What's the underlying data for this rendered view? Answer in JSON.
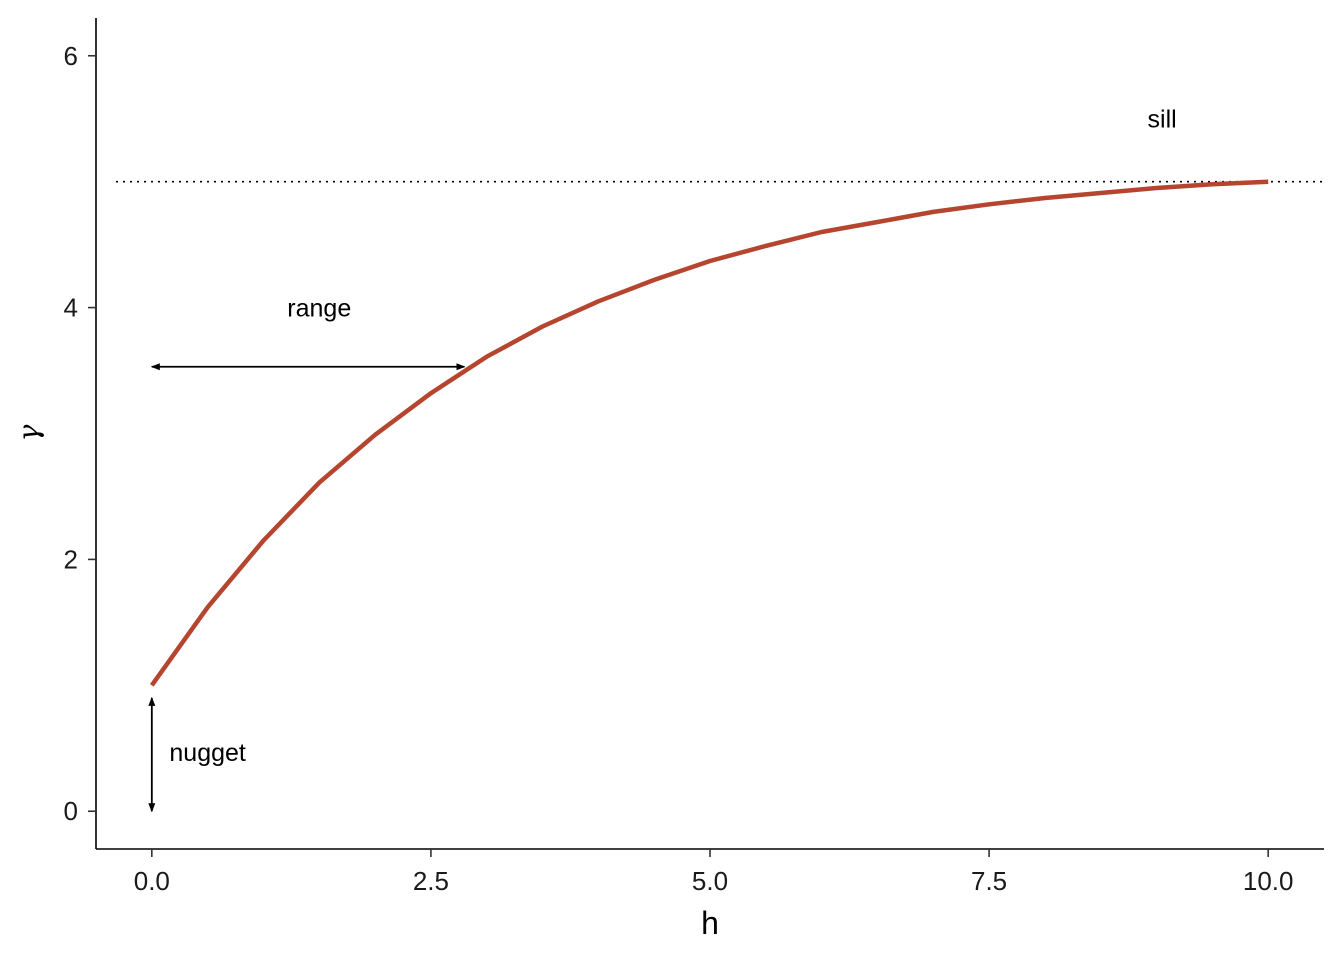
{
  "chart_data": {
    "type": "line",
    "title": "",
    "xlabel": "h",
    "ylabel": "γ",
    "xlim": [
      -0.5,
      10.5
    ],
    "ylim": [
      -0.3,
      6.3
    ],
    "x_ticks": [
      0,
      2.5,
      5,
      7.5,
      10
    ],
    "x_tick_labels": [
      "0.0",
      "2.5",
      "5.0",
      "7.5",
      "10.0"
    ],
    "y_ticks": [
      0,
      2,
      4,
      6
    ],
    "y_tick_labels": [
      "0",
      "2",
      "4",
      "6"
    ],
    "grid": false,
    "series": [
      {
        "x": [
          0,
          0.5,
          1,
          1.5,
          2,
          2.5,
          3,
          3.5,
          4,
          4.5,
          5,
          5.5,
          6,
          6.5,
          7,
          7.5,
          8,
          8.5,
          9,
          9.5,
          10
        ],
        "values": [
          1.0,
          1.62,
          2.15,
          2.61,
          2.99,
          3.32,
          3.61,
          3.85,
          4.05,
          4.22,
          4.37,
          4.49,
          4.6,
          4.68,
          4.76,
          4.82,
          4.87,
          4.91,
          4.95,
          4.98,
          5.0
        ],
        "color": "#B5452E"
      }
    ],
    "reference_lines": [
      {
        "axis": "y",
        "value": 5,
        "style": "dotted",
        "color": "#000000"
      }
    ],
    "annotations": [
      {
        "text": "sill",
        "x": 9.05,
        "y": 5.5
      },
      {
        "text": "range",
        "x": 1.5,
        "y": 4.0
      },
      {
        "text": "nugget",
        "x": 0.5,
        "y": 0.47
      }
    ],
    "arrows": [
      {
        "name": "range-arrow",
        "from": [
          0,
          3.53
        ],
        "to": [
          2.8,
          3.53
        ],
        "both_ends": true
      },
      {
        "name": "nugget-arrow",
        "from": [
          0,
          0.9
        ],
        "to": [
          0,
          0
        ],
        "both_ends": true
      }
    ]
  }
}
